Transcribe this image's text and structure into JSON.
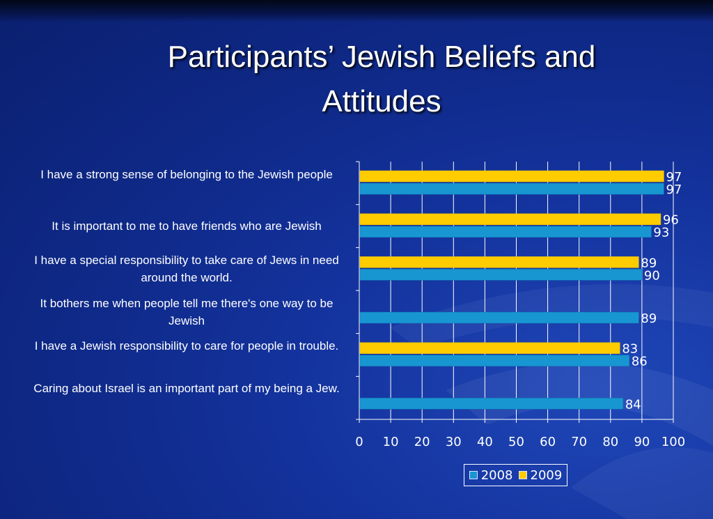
{
  "title_line1": "Participants’ Jewish Beliefs and",
  "title_line2": "Attitudes",
  "colors": {
    "2008": "#1896d2",
    "2009": "#ffcc00",
    "grid": "#ffffff",
    "text": "#ffffff"
  },
  "chart_data": {
    "type": "bar",
    "orientation": "horizontal",
    "categories": [
      "I have a strong sense of belonging to the Jewish people",
      "It is important to me to have friends who are Jewish",
      "I have a special responsibility to take care of Jews in need around the world.",
      "It bothers me when people tell me there's one way to be Jewish",
      "I have a Jewish responsibility to care for people in trouble.",
      "Caring about Israel is an important part of my being a Jew."
    ],
    "series": [
      {
        "name": "2008",
        "values": [
          97,
          93,
          90,
          89,
          86,
          84
        ]
      },
      {
        "name": "2009",
        "values": [
          97,
          96,
          89,
          null,
          83,
          null
        ]
      }
    ],
    "xlim": [
      0,
      100
    ],
    "xticks": [
      0,
      10,
      20,
      30,
      40,
      50,
      60,
      70,
      80,
      90,
      100
    ],
    "grid": true,
    "legend_position": "bottom"
  }
}
